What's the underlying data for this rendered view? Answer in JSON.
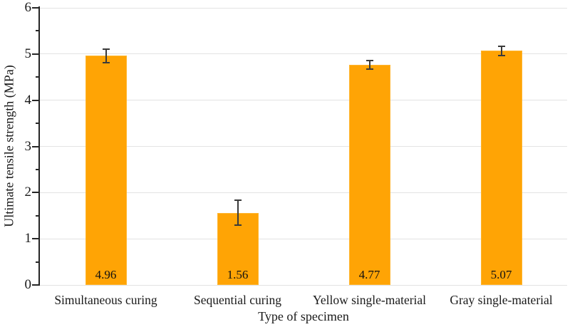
{
  "chart_data": {
    "type": "bar",
    "title": "",
    "xlabel": "Type of specimen",
    "ylabel": "Ultimate tensile strength (MPa)",
    "categories": [
      "Simultaneous curing",
      "Sequential curing",
      "Yellow single-material",
      "Gray single-material"
    ],
    "values": [
      4.96,
      1.56,
      4.77,
      5.07
    ],
    "value_labels": [
      "4.96",
      "1.56",
      "4.77",
      "5.07"
    ],
    "errors": [
      0.15,
      0.27,
      0.09,
      0.1
    ],
    "ylim": [
      0,
      6
    ],
    "ytick_step": 1,
    "minor_tick_step": 0.5,
    "ytick_labels": [
      "0",
      "1",
      "2",
      "3",
      "4",
      "5",
      "6"
    ],
    "grid": true,
    "legend": "none",
    "bar_color": "#FFA405",
    "bar_border_color": "#FFB52E",
    "error_bar_color": "#3A3A3A",
    "gridline_color": "#E3E3E3",
    "axis_color": "#262626"
  }
}
